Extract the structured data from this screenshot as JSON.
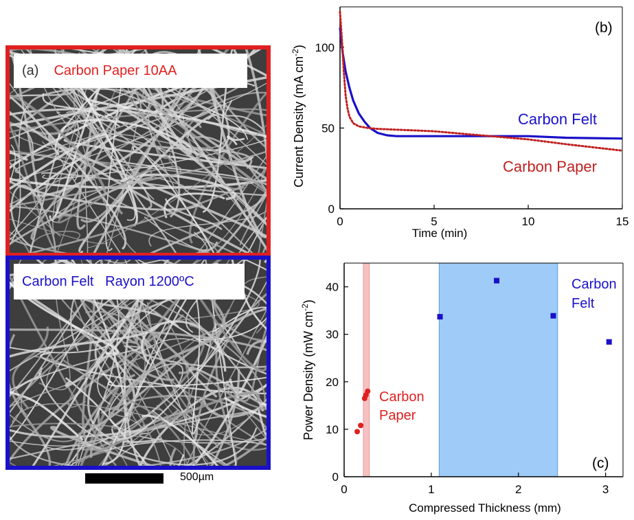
{
  "panel_a": {
    "tag": "(a)",
    "paper_label": "Carbon Paper  10AA",
    "felt_label": "Carbon Felt   Rayon 1200ºC",
    "scale_label": "500µm",
    "paper_border_color": "#e02020",
    "felt_border_color": "#1a10c8"
  },
  "chart_data": [
    {
      "type": "line",
      "panel_tag": "(b)",
      "xlabel": "Time (min)",
      "ylabel": "Current Density (mA cm",
      "ylabel_sup": "-2",
      "ylabel_close": ")",
      "xlim": [
        0,
        15
      ],
      "ylim": [
        0,
        125
      ],
      "x_ticks": [
        "0",
        "5",
        "10",
        "15"
      ],
      "y_ticks": [
        "0",
        "50",
        "100"
      ],
      "series": [
        {
          "name": "Carbon Felt",
          "color": "#1a10c8",
          "style": "solid",
          "x": [
            0,
            0.15,
            0.3,
            0.5,
            0.7,
            1.0,
            1.3,
            1.6,
            2.0,
            2.5,
            3.0,
            4.0,
            5.0,
            6.0,
            8.0,
            10.0,
            12.0,
            15.0
          ],
          "y": [
            112,
            96,
            85,
            75,
            67,
            59,
            54,
            50,
            47,
            45.5,
            45,
            45,
            45,
            45,
            45,
            45,
            44,
            43.5
          ]
        },
        {
          "name": "Carbon Paper",
          "color": "#c02020",
          "style": "dotted",
          "x": [
            0,
            0.1,
            0.2,
            0.3,
            0.4,
            0.5,
            0.7,
            1.0,
            1.5,
            2.0,
            3.0,
            4.0,
            5.0,
            6.0,
            8.0,
            10.0,
            12.0,
            15.0
          ],
          "y": [
            122,
            105,
            85,
            70,
            62,
            57,
            53,
            51,
            50,
            49.5,
            49,
            48.5,
            48,
            47,
            45,
            43,
            40,
            36
          ]
        }
      ]
    },
    {
      "type": "scatter",
      "panel_tag": "(c)",
      "xlabel": "Compressed Thickness (mm)",
      "ylabel": "Power Density (mW cm",
      "ylabel_sup": "-2",
      "ylabel_close": ")",
      "xlim": [
        0,
        3.2
      ],
      "ylim": [
        0,
        45
      ],
      "x_ticks": [
        "0",
        "1",
        "2",
        "3"
      ],
      "y_ticks": [
        "0",
        "10",
        "20",
        "30",
        "40"
      ],
      "bands": [
        {
          "x0": 0.22,
          "x1": 0.29,
          "color": "#f6c0c0"
        },
        {
          "x0": 1.09,
          "x1": 2.45,
          "color": "#9ecbf7"
        }
      ],
      "series": [
        {
          "name": "Carbon Paper",
          "label_lines": [
            "Carbon",
            "Paper"
          ],
          "color": "#e02020",
          "marker": "circle",
          "x": [
            0.15,
            0.19,
            0.235,
            0.25,
            0.27
          ],
          "y": [
            9.5,
            10.8,
            16.5,
            17.2,
            18.0
          ]
        },
        {
          "name": "Carbon Felt",
          "label_lines": [
            "Carbon",
            "Felt"
          ],
          "color": "#1a10c8",
          "marker": "square",
          "x": [
            1.1,
            1.75,
            2.4,
            3.04
          ],
          "y": [
            33.7,
            41.3,
            33.9,
            28.4
          ]
        }
      ]
    }
  ]
}
